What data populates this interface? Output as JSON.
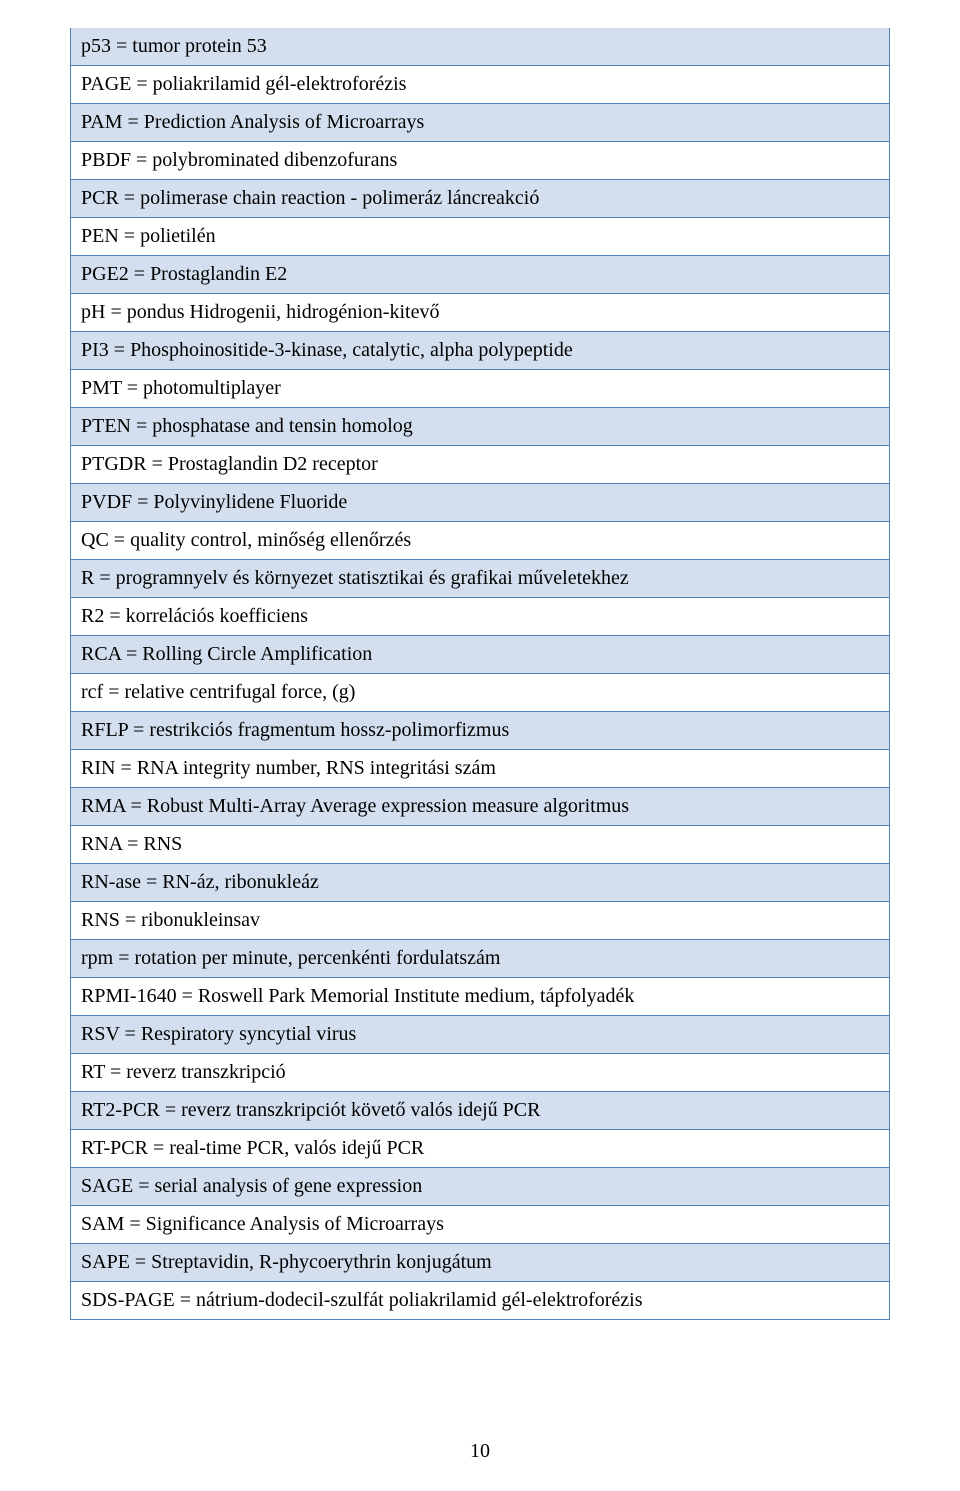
{
  "colors": {
    "border": "#4f81bd",
    "odd_row_bg": "#d3dfee",
    "even_row_bg": "#ffffff",
    "text": "#000000"
  },
  "typography": {
    "font_family": "Times New Roman",
    "font_size_pt": 15,
    "line_height": 1.55
  },
  "page_number": "10",
  "rows": [
    "p53 = tumor protein 53",
    "PAGE = poliakrilamid gél-elektroforézis",
    "PAM = Prediction Analysis of Microarrays",
    "PBDF = polybrominated dibenzofurans",
    "PCR = polimerase chain reaction - polimeráz láncreakció",
    "PEN = polietilén",
    "PGE2 = Prostaglandin E2",
    "pH = pondus Hidrogenii, hidrogénion-kitevő",
    "PI3 = Phosphoinositide-3-kinase, catalytic, alpha polypeptide",
    "PMT = photomultiplayer",
    "PTEN = phosphatase and tensin homolog",
    "PTGDR = Prostaglandin D2 receptor",
    "PVDF = Polyvinylidene Fluoride",
    "QC = quality control, minőség ellenőrzés",
    "R = programnyelv és környezet statisztikai és grafikai műveletekhez",
    "R2 = korrelációs koefficiens",
    "RCA = Rolling Circle Amplification",
    "rcf = relative centrifugal force, (g)",
    "RFLP = restrikciós fragmentum hossz-polimorfizmus",
    "RIN = RNA integrity number, RNS integritási szám",
    "RMA = Robust Multi-Array Average expression measure algoritmus",
    "RNA = RNS",
    "RN-ase = RN-áz, ribonukleáz",
    "RNS = ribonukleinsav",
    "rpm = rotation per minute, percenkénti fordulatszám",
    "RPMI-1640 = Roswell Park Memorial Institute medium, tápfolyadék",
    "RSV = Respiratory syncytial virus",
    "RT = reverz transzkripció",
    "RT2-PCR = reverz transzkripciót követő valós idejű PCR",
    "RT-PCR = real-time PCR, valós idejű PCR",
    "SAGE = serial analysis of gene expression",
    "SAM = Significance Analysis of Microarrays",
    "SAPE = Streptavidin, R-phycoerythrin konjugátum",
    "SDS-PAGE = nátrium-dodecil-szulfát poliakrilamid gél-elektroforézis"
  ]
}
